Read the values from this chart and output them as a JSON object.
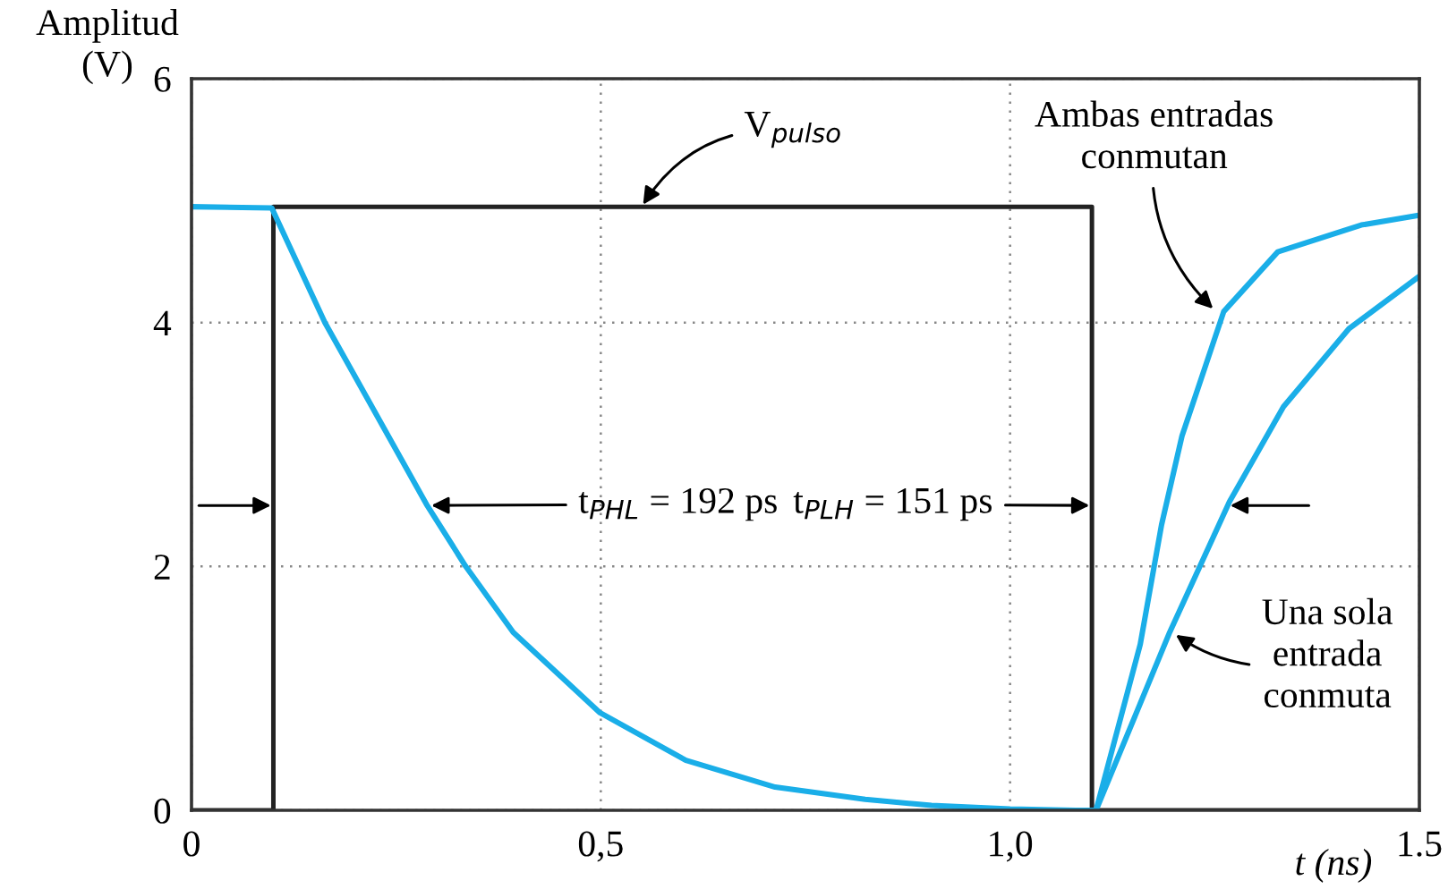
{
  "chart_data": {
    "type": "line",
    "ylabel": "Amplitud\n(V)",
    "xlabel": "t (ns)",
    "xlim": [
      0,
      1.5
    ],
    "ylim": [
      0,
      6
    ],
    "xticks": [
      0,
      {
        "value": 0.5,
        "label": "0,5"
      },
      {
        "value": 1.0,
        "label": "1,0"
      },
      1.5
    ],
    "yticks": [
      0,
      2,
      4,
      6
    ],
    "grid": true,
    "marker": "none",
    "line_style": "solid",
    "series": [
      {
        "color": "#222222",
        "type": "step",
        "x": [
          0,
          0.1,
          1.1,
          1.5
        ],
        "values": [
          0,
          4.95,
          0,
          0
        ]
      },
      {
        "color": "#1aaee8",
        "x": [
          0,
          0.098,
          0.163,
          0.287,
          0.335,
          0.393,
          0.499,
          0.604,
          0.713,
          0.823,
          0.904,
          1.0,
          1.08,
          1.105
        ],
        "values": [
          4.95,
          4.94,
          4.0,
          2.51,
          2.0,
          1.46,
          0.8,
          0.41,
          0.19,
          0.09,
          0.04,
          0.01,
          0,
          0
        ]
      },
      {
        "color": "#1aaee8",
        "x": [
          1.105,
          1.159,
          1.185,
          1.21,
          1.261,
          1.327,
          1.429,
          1.5
        ],
        "values": [
          0,
          1.36,
          2.34,
          3.07,
          4.09,
          4.58,
          4.8,
          4.88
        ]
      },
      {
        "color": "#1aaee8",
        "x": [
          1.105,
          1.195,
          1.268,
          1.334,
          1.414,
          1.5
        ],
        "values": [
          0,
          1.46,
          2.53,
          3.31,
          3.95,
          4.38
        ]
      }
    ],
    "annotations": [
      {
        "text": "V$_{pulso}$",
        "x": 0.55,
        "y": 4.95
      },
      {
        "text": "t$_{PHL}$ = 192 ps",
        "x": 0.29,
        "y": 2.5
      },
      {
        "text": "t$_{PLH}$ = 151 ps",
        "x": 1.1,
        "y": 2.5
      },
      {
        "text": "Ambas entradas\nconmutan",
        "x": 1.25,
        "y": 4.1
      },
      {
        "text": "Una sola\nentrada\nconmuta",
        "x": 1.2,
        "y": 1.45
      }
    ]
  }
}
